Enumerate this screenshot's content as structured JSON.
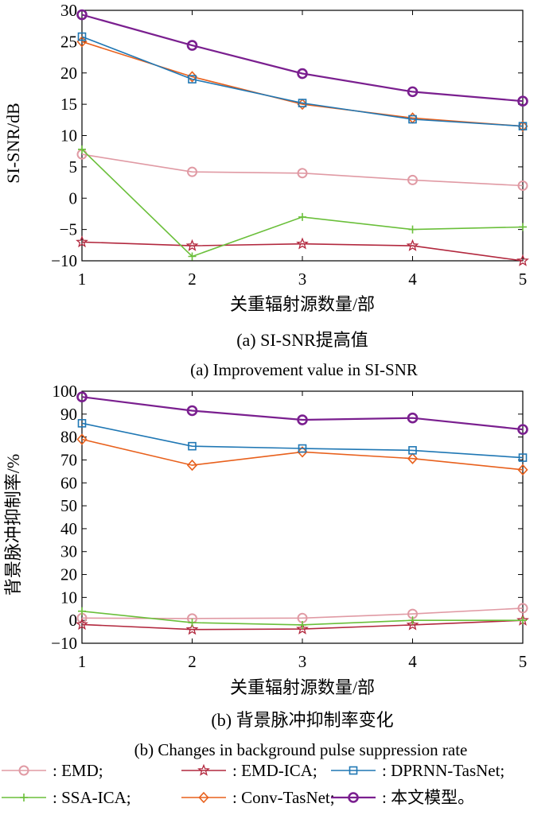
{
  "chart_data": [
    {
      "type": "line",
      "caption_cn": "(a) SI-SNR提高值",
      "caption_en": "(a) Improvement value in SI-SNR",
      "xlabel": "关重辐射源数量/部",
      "ylabel": "SI-SNR/dB",
      "x": [
        1,
        2,
        3,
        4,
        5
      ],
      "xlim": [
        1,
        5
      ],
      "ylim": [
        -10,
        30
      ],
      "yticks": [
        -10,
        -5,
        0,
        5,
        10,
        15,
        20,
        25,
        30
      ],
      "grid": false,
      "series": [
        {
          "name": "EMD",
          "values": [
            7.0,
            4.2,
            4.0,
            2.9,
            2.0
          ]
        },
        {
          "name": "EMD-ICA",
          "values": [
            -7.0,
            -7.6,
            -7.3,
            -7.6,
            -10.0
          ]
        },
        {
          "name": "DPRNN-TasNet",
          "values": [
            25.8,
            19.0,
            15.2,
            12.6,
            11.5
          ]
        },
        {
          "name": "SSA-ICA",
          "values": [
            7.8,
            -9.3,
            -3.0,
            -5.0,
            -4.6
          ]
        },
        {
          "name": "Conv-TasNet",
          "values": [
            25.0,
            19.4,
            15.0,
            12.8,
            11.5
          ]
        },
        {
          "name": "本文模型",
          "values": [
            29.3,
            24.4,
            19.9,
            17.0,
            15.5
          ]
        }
      ]
    },
    {
      "type": "line",
      "caption_cn": "(b) 背景脉冲抑制率变化",
      "caption_en": "(b) Changes in background pulse suppression rate",
      "xlabel": "关重辐射源数量/部",
      "ylabel": "背景脉冲抑制率/%",
      "x": [
        1,
        2,
        3,
        4,
        5
      ],
      "xlim": [
        1,
        5
      ],
      "ylim": [
        -10,
        100
      ],
      "yticks": [
        -10,
        0,
        10,
        20,
        30,
        40,
        50,
        60,
        70,
        80,
        90,
        100
      ],
      "grid": false,
      "series": [
        {
          "name": "EMD",
          "values": [
            1.0,
            0.8,
            1.0,
            2.8,
            5.3
          ]
        },
        {
          "name": "EMD-ICA",
          "values": [
            -1.8,
            -4.0,
            -3.8,
            -2.0,
            0.0
          ]
        },
        {
          "name": "DPRNN-TasNet",
          "values": [
            86.0,
            76.0,
            75.0,
            74.2,
            71.0
          ]
        },
        {
          "name": "SSA-ICA",
          "values": [
            4.0,
            -1.0,
            -2.0,
            0.0,
            0.0
          ]
        },
        {
          "name": "Conv-TasNet",
          "values": [
            79.0,
            67.7,
            73.5,
            70.6,
            65.7
          ]
        },
        {
          "name": "本文模型",
          "values": [
            97.5,
            91.5,
            87.5,
            88.3,
            83.3
          ]
        }
      ]
    }
  ],
  "legend": [
    {
      "label": ": EMD;",
      "color": "#e09aa4",
      "marker": "circle"
    },
    {
      "label": ": EMD-ICA;",
      "color": "#b2283e",
      "marker": "star"
    },
    {
      "label": ": DPRNN-TasNet;",
      "color": "#1f77b4",
      "marker": "square"
    },
    {
      "label": ": SSA-ICA;",
      "color": "#6abf3a",
      "marker": "plus"
    },
    {
      "label": ": Conv-TasNet;",
      "color": "#e8601c",
      "marker": "diamond"
    },
    {
      "label": ": 本文模型。",
      "color": "#7a1f8f",
      "marker": "circle-bold"
    }
  ]
}
